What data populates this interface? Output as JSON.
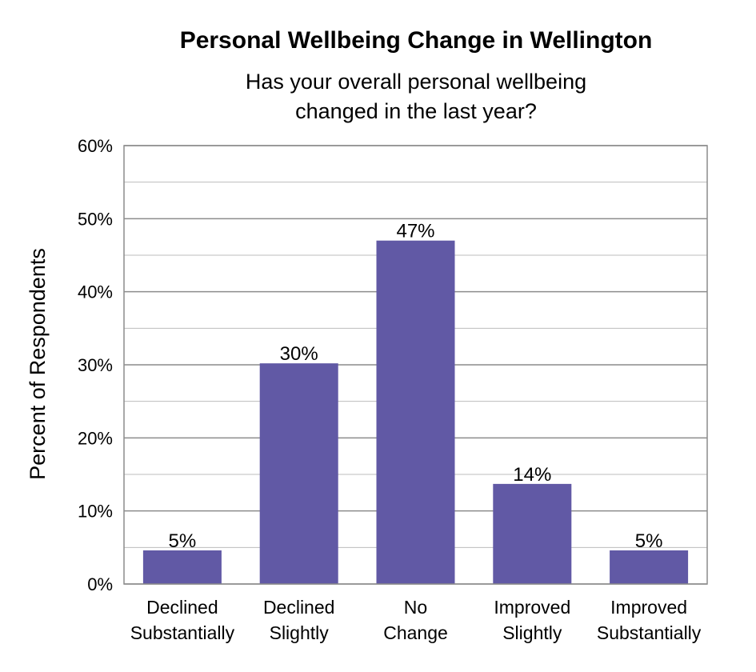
{
  "chart_data": {
    "type": "bar",
    "title": "Personal Wellbeing Change in Wellington",
    "subtitle": [
      "Has your overall personal wellbeing",
      "changed in the last year?"
    ],
    "ylabel": "Percent of Respondents",
    "xlabel": "",
    "categories": [
      [
        "Declined",
        "Substantially"
      ],
      [
        "Declined",
        "Slightly"
      ],
      [
        "No",
        "Change"
      ],
      [
        "Improved",
        "Slightly"
      ],
      [
        "Improved",
        "Substantially"
      ]
    ],
    "values": [
      4.6,
      30.2,
      47.0,
      13.7,
      4.6
    ],
    "data_labels": [
      "5%",
      "30%",
      "47%",
      "14%",
      "5%"
    ],
    "ylim": [
      0,
      60
    ],
    "yticks": [
      0,
      10,
      20,
      30,
      40,
      50,
      60
    ],
    "ytick_labels": [
      "0%",
      "10%",
      "20%",
      "30%",
      "40%",
      "50%",
      "60%"
    ],
    "grid": true,
    "legend": "none",
    "colors": {
      "bar": "#6159a5",
      "grid": "#bdbdbd",
      "axis": "#8c8c8c"
    }
  }
}
